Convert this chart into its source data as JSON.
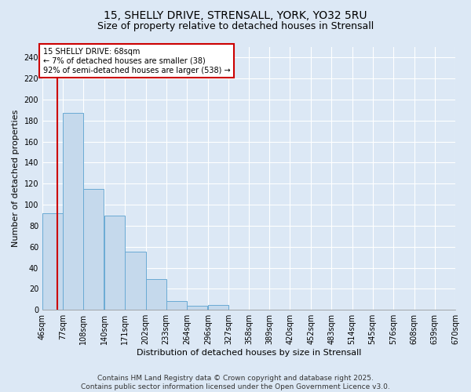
{
  "title_line1": "15, SHELLY DRIVE, STRENSALL, YORK, YO32 5RU",
  "title_line2": "Size of property relative to detached houses in Strensall",
  "xlabel": "Distribution of detached houses by size in Strensall",
  "ylabel": "Number of detached properties",
  "bins": [
    46,
    77,
    108,
    140,
    171,
    202,
    233,
    264,
    296,
    327,
    358,
    389,
    420,
    452,
    483,
    514,
    545,
    576,
    608,
    639,
    670
  ],
  "counts": [
    92,
    187,
    115,
    90,
    55,
    29,
    8,
    4,
    5,
    0,
    0,
    0,
    0,
    0,
    0,
    0,
    0,
    0,
    0,
    1
  ],
  "bar_color": "#c5d9ec",
  "bar_edge_color": "#6aaad4",
  "background_color": "#dce8f5",
  "grid_color": "#ffffff",
  "property_size": 68,
  "red_line_color": "#cc0000",
  "annotation_text": "15 SHELLY DRIVE: 68sqm\n← 7% of detached houses are smaller (38)\n92% of semi-detached houses are larger (538) →",
  "annotation_box_color": "#ffffff",
  "annotation_border_color": "#cc0000",
  "ylim": [
    0,
    250
  ],
  "yticks": [
    0,
    20,
    40,
    60,
    80,
    100,
    120,
    140,
    160,
    180,
    200,
    220,
    240
  ],
  "tick_labels": [
    "46sqm",
    "77sqm",
    "108sqm",
    "140sqm",
    "171sqm",
    "202sqm",
    "233sqm",
    "264sqm",
    "296sqm",
    "327sqm",
    "358sqm",
    "389sqm",
    "420sqm",
    "452sqm",
    "483sqm",
    "514sqm",
    "545sqm",
    "576sqm",
    "608sqm",
    "639sqm",
    "670sqm"
  ],
  "footer_text": "Contains HM Land Registry data © Crown copyright and database right 2025.\nContains public sector information licensed under the Open Government Licence v3.0.",
  "title_fontsize": 10,
  "subtitle_fontsize": 9,
  "axis_label_fontsize": 8,
  "tick_fontsize": 7,
  "annotation_fontsize": 7,
  "footer_fontsize": 6.5
}
